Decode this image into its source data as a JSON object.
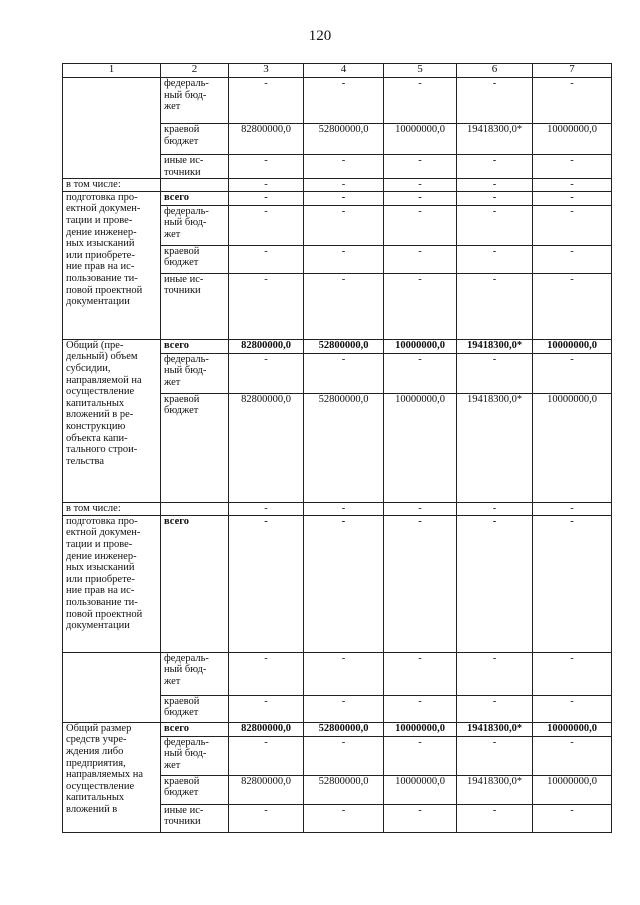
{
  "page_number": "120",
  "header": [
    "1",
    "2",
    "3",
    "4",
    "5",
    "6",
    "7"
  ],
  "groups": [
    {
      "label": "",
      "rows": [
        {
          "source": "федераль-\nный бюд-\nжет",
          "values": [
            "-",
            "-",
            "-",
            "-",
            "-"
          ]
        },
        {
          "source": "краевой\nбюджет",
          "values": [
            "82800000,0",
            "52800000,0",
            "10000000,0",
            "19418300,0*",
            "10000000,0"
          ]
        },
        {
          "source": "иные ис-\nточники",
          "values": [
            "-",
            "-",
            "-",
            "-",
            "-"
          ]
        }
      ]
    },
    {
      "label": "в том числе:",
      "rows": [
        {
          "source": "",
          "values": [
            "-",
            "-",
            "-",
            "-",
            "-"
          ]
        }
      ]
    },
    {
      "label": "подготовка про-\nектной докумен-\nтации и прове-\nдение инженер-\nных изысканий\nили приобрете-\nние прав на ис-\nпользование ти-\nповой проектной\nдокументации",
      "rows": [
        {
          "source": "всего",
          "bold": true,
          "values": [
            "-",
            "-",
            "-",
            "-",
            "-"
          ]
        },
        {
          "source": "федераль-\nный бюд-\nжет",
          "values": [
            "-",
            "-",
            "-",
            "-",
            "-"
          ]
        },
        {
          "source": "краевой\nбюджет",
          "values": [
            "-",
            "-",
            "-",
            "-",
            "-"
          ]
        },
        {
          "source": "иные ис-\nточники",
          "values": [
            "-",
            "-",
            "-",
            "-",
            "-"
          ]
        }
      ]
    },
    {
      "label": "Общий (пре-\nдельный) объем\nсубсидии,\nнаправляемой на\nосуществление\nкапитальных\nвложений в ре-\nконструкцию\nобъекта капи-\nтального строи-\nтельства",
      "rows": [
        {
          "source": "всего",
          "bold": true,
          "values": [
            "82800000,0",
            "52800000,0",
            "10000000,0",
            "19418300,0*",
            "10000000,0"
          ]
        },
        {
          "source": "федераль-\nный бюд-\nжет",
          "values": [
            "-",
            "-",
            "-",
            "-",
            "-"
          ]
        },
        {
          "source": "краевой\nбюджет",
          "values": [
            "82800000,0",
            "52800000,0",
            "10000000,0",
            "19418300,0*",
            "10000000,0"
          ]
        }
      ]
    },
    {
      "label": "в том числе:",
      "rows": [
        {
          "source": "",
          "values": [
            "-",
            "-",
            "-",
            "-",
            "-"
          ]
        }
      ]
    },
    {
      "label": "подготовка про-\nектной докумен-\nтации и прове-\nдение инженер-\nных изысканий\nили приобрете-\nние прав на ис-\nпользование ти-\nповой проектной\nдокументации",
      "rows": [
        {
          "source": "всего",
          "bold": true,
          "values": [
            "-",
            "-",
            "-",
            "-",
            "-"
          ]
        }
      ]
    },
    {
      "label": "",
      "rows": [
        {
          "source": "федераль-\nный бюд-\nжет",
          "values": [
            "-",
            "-",
            "-",
            "-",
            "-"
          ]
        },
        {
          "source": "краевой\nбюджет",
          "values": [
            "-",
            "-",
            "-",
            "-",
            "-"
          ]
        }
      ]
    },
    {
      "label": "Общий размер\nсредств учре-\nждения либо\nпредприятия,\nнаправляемых на\nосуществление\nкапитальных\nвложений в",
      "rows": [
        {
          "source": "всего",
          "bold": true,
          "values": [
            "82800000,0",
            "52800000,0",
            "10000000,0",
            "19418300,0*",
            "10000000,0"
          ]
        },
        {
          "source": "федераль-\nный бюд-\nжет",
          "values": [
            "-",
            "-",
            "-",
            "-",
            "-"
          ]
        },
        {
          "source": "краевой\nбюджет",
          "values": [
            "82800000,0",
            "52800000,0",
            "10000000,0",
            "19418300,0*",
            "10000000,0"
          ]
        },
        {
          "source": "иные ис-\nточники",
          "values": [
            "-",
            "-",
            "-",
            "-",
            "-"
          ]
        }
      ]
    }
  ]
}
